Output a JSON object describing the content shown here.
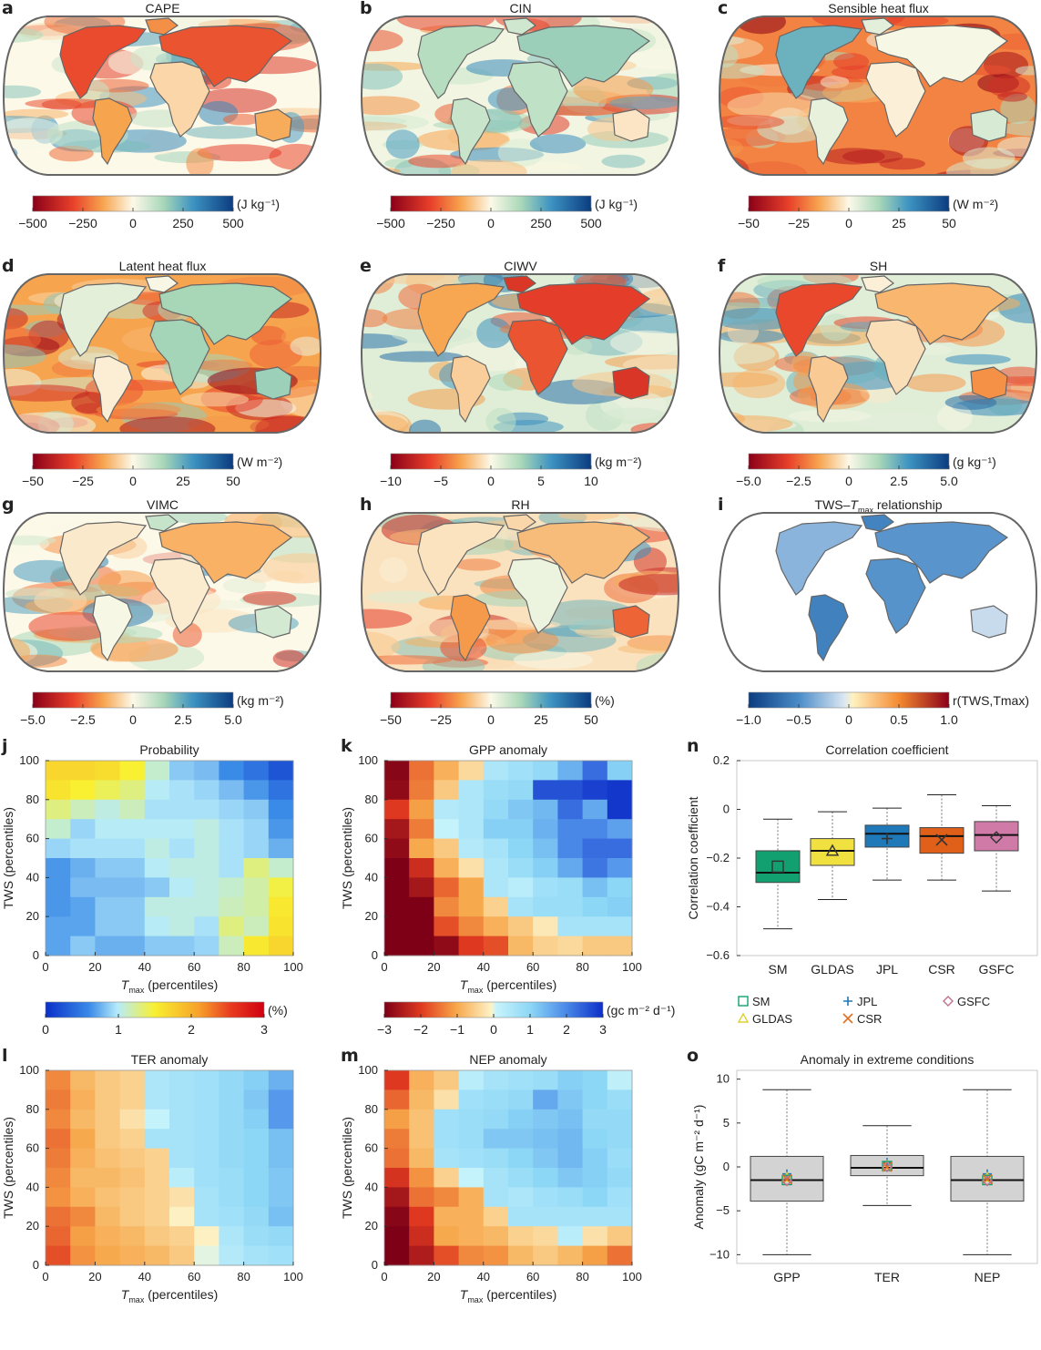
{
  "maps": [
    {
      "id": "a",
      "label": "a",
      "title": "CAPE",
      "unit": "(J kg⁻¹)",
      "ticks": [
        "−500",
        "−250",
        "0",
        "250",
        "500"
      ],
      "range": [
        -500,
        500
      ],
      "cmap": "rdylbu"
    },
    {
      "id": "b",
      "label": "b",
      "title": "CIN",
      "unit": "(J kg⁻¹)",
      "ticks": [
        "−500",
        "−250",
        "0",
        "250",
        "500"
      ],
      "range": [
        -500,
        500
      ],
      "cmap": "rdylbu"
    },
    {
      "id": "c",
      "label": "c",
      "title": "Sensible heat flux",
      "unit": "(W m⁻²)",
      "ticks": [
        "−50",
        "−25",
        "0",
        "25",
        "50"
      ],
      "range": [
        -50,
        50
      ],
      "cmap": "rdylbu"
    },
    {
      "id": "d",
      "label": "d",
      "title": "Latent heat flux",
      "unit": "(W m⁻²)",
      "ticks": [
        "−50",
        "−25",
        "0",
        "25",
        "50"
      ],
      "range": [
        -50,
        50
      ],
      "cmap": "rdylbu"
    },
    {
      "id": "e",
      "label": "e",
      "title": "CIWV",
      "unit": "(kg m⁻²)",
      "ticks": [
        "−10",
        "−5",
        "0",
        "5",
        "10"
      ],
      "range": [
        -10,
        10
      ],
      "cmap": "rdylbu"
    },
    {
      "id": "f",
      "label": "f",
      "title": "SH",
      "unit": "(g kg⁻¹)",
      "ticks": [
        "−5.0",
        "−2.5",
        "0",
        "2.5",
        "5.0"
      ],
      "range": [
        -5,
        5
      ],
      "cmap": "rdylbu"
    },
    {
      "id": "g",
      "label": "g",
      "title": "VIMC",
      "unit": "(kg m⁻²)",
      "ticks": [
        "−5.0",
        "−2.5",
        "0",
        "2.5",
        "5.0"
      ],
      "range": [
        -5,
        5
      ],
      "cmap": "rdylbu"
    },
    {
      "id": "h",
      "label": "h",
      "title": "RH",
      "unit": "(%)",
      "ticks": [
        "−50",
        "−25",
        "0",
        "25",
        "50"
      ],
      "range": [
        -50,
        50
      ],
      "cmap": "rdylbu"
    },
    {
      "id": "i",
      "label": "i",
      "title": "TWS–Tmax relationship",
      "title_main": "TWS–",
      "title_T": "T",
      "title_sub": "max",
      "title_rest": " relationship",
      "unit": "r(TWS,Tmax)",
      "ticks": [
        "−1.0",
        "−0.5",
        "0",
        "0.5",
        "1.0"
      ],
      "range": [
        -1,
        1
      ],
      "cmap": "burd"
    }
  ],
  "chart_data": [
    {
      "id": "j",
      "label": "j",
      "type": "heatmap",
      "title": "Probability",
      "xlabel": "Tmax (percentiles)",
      "ylabel": "TWS (percentiles)",
      "xticks": [
        "0",
        "20",
        "40",
        "60",
        "80",
        "100"
      ],
      "yticks": [
        "0",
        "20",
        "40",
        "60",
        "80",
        "100"
      ],
      "xlim": [
        0,
        100
      ],
      "ylim": [
        0,
        100
      ],
      "colorbar": {
        "unit": "(%)",
        "ticks": [
          "0",
          "1",
          "2",
          "3"
        ],
        "range": [
          0,
          3
        ],
        "cmap": "jet"
      },
      "rows_top_to_bottom": [
        [
          1.7,
          1.7,
          1.65,
          1.5,
          1.1,
          0.85,
          0.8,
          0.6,
          0.45,
          0.25
        ],
        [
          1.6,
          1.5,
          1.4,
          1.3,
          1.0,
          0.95,
          0.9,
          0.8,
          0.65,
          0.45
        ],
        [
          1.3,
          1.15,
          1.05,
          1.15,
          0.95,
          0.95,
          0.95,
          0.9,
          0.85,
          0.6
        ],
        [
          1.1,
          0.9,
          1.0,
          1.0,
          1.0,
          1.0,
          1.05,
          0.95,
          0.9,
          0.65
        ],
        [
          0.9,
          0.95,
          0.95,
          0.95,
          1.05,
          0.95,
          1.05,
          0.95,
          0.9,
          0.75
        ],
        [
          0.65,
          0.75,
          0.85,
          0.85,
          1.0,
          1.05,
          1.05,
          0.95,
          1.3,
          1.1
        ],
        [
          0.65,
          0.8,
          0.8,
          0.8,
          0.85,
          1.0,
          1.05,
          1.1,
          1.2,
          1.45
        ],
        [
          0.65,
          0.7,
          0.85,
          0.85,
          1.05,
          1.05,
          1.05,
          1.15,
          1.2,
          1.55
        ],
        [
          0.7,
          0.7,
          0.85,
          0.85,
          1.0,
          1.05,
          0.95,
          1.3,
          1.15,
          1.6
        ],
        [
          0.7,
          0.85,
          0.75,
          0.75,
          0.85,
          0.85,
          0.9,
          1.15,
          1.55,
          1.7
        ]
      ]
    },
    {
      "id": "k",
      "label": "k",
      "type": "heatmap",
      "title": "GPP anomaly",
      "xlabel": "Tmax (percentiles)",
      "ylabel": "TWS (percentiles)",
      "xticks": [
        "0",
        "20",
        "40",
        "60",
        "80",
        "100"
      ],
      "yticks": [
        "0",
        "20",
        "40",
        "60",
        "80",
        "100"
      ],
      "xlim": [
        0,
        100
      ],
      "ylim": [
        0,
        100
      ],
      "colorbar": {
        "unit": "(gc m⁻² d⁻¹)",
        "ticks": [
          "−3",
          "−2",
          "−1",
          "0",
          "1",
          "2",
          "3"
        ],
        "range": [
          -3,
          3
        ],
        "cmap": "rdbu_k"
      },
      "rows_top_to_bottom": [
        [
          -2.9,
          -1.5,
          -0.9,
          -0.4,
          0.5,
          0.7,
          0.9,
          1.5,
          2.3,
          1.1
        ],
        [
          -2.8,
          -1.4,
          -0.6,
          0.5,
          0.8,
          0.9,
          2.6,
          2.6,
          2.8,
          2.9
        ],
        [
          -2.0,
          -1.1,
          0.4,
          0.5,
          0.9,
          1.2,
          1.4,
          2.3,
          1.6,
          2.9
        ],
        [
          -2.6,
          -1.4,
          0.1,
          0.5,
          1.1,
          1.1,
          1.5,
          2.0,
          2.0,
          1.7
        ],
        [
          -2.8,
          -1.0,
          -0.6,
          0.4,
          0.6,
          1.0,
          1.3,
          2.0,
          2.3,
          2.3
        ],
        [
          -3.0,
          -2.2,
          -0.9,
          -0.3,
          0.5,
          0.8,
          1.1,
          1.6,
          2.2,
          1.8
        ],
        [
          -3.0,
          -2.6,
          -1.6,
          -1.0,
          0.5,
          0.3,
          0.7,
          0.8,
          1.3,
          1.0
        ],
        [
          -3.0,
          -3.0,
          -1.3,
          -1.0,
          -0.5,
          0.6,
          0.8,
          0.8,
          1.0,
          1.1
        ],
        [
          -3.0,
          -3.0,
          -1.8,
          -1.3,
          -0.9,
          -0.6,
          -0.2,
          0.6,
          0.6,
          0.6
        ],
        [
          -3.0,
          -3.0,
          -2.8,
          -2.0,
          -1.8,
          -0.8,
          -0.5,
          -0.4,
          -0.6,
          -0.6
        ]
      ]
    },
    {
      "id": "l",
      "label": "l",
      "type": "heatmap",
      "title": "TER anomaly",
      "xlabel": "Tmax (percentiles)",
      "ylabel": "TWS (percentiles)",
      "xticks": [
        "0",
        "20",
        "40",
        "60",
        "80",
        "100"
      ],
      "yticks": [
        "0",
        "20",
        "40",
        "60",
        "80",
        "100"
      ],
      "xlim": [
        0,
        100
      ],
      "ylim": [
        0,
        100
      ],
      "colorbar_ref": "k",
      "rows_top_to_bottom": [
        [
          -1.3,
          -0.8,
          -0.6,
          -0.5,
          0.5,
          0.6,
          0.7,
          0.9,
          1.1,
          1.5
        ],
        [
          -1.4,
          -0.9,
          -0.6,
          -0.5,
          0.5,
          0.6,
          0.7,
          0.9,
          1.2,
          1.8
        ],
        [
          -1.3,
          -0.8,
          -0.6,
          -0.3,
          0.1,
          0.6,
          0.7,
          0.9,
          1.1,
          1.8
        ],
        [
          -1.5,
          -1.0,
          -0.6,
          -0.5,
          0.6,
          0.6,
          0.7,
          0.9,
          1.0,
          1.3
        ],
        [
          -1.4,
          -0.9,
          -0.7,
          -0.6,
          -0.5,
          0.6,
          0.7,
          0.9,
          1.0,
          1.3
        ],
        [
          -1.3,
          -0.8,
          -0.8,
          -0.7,
          -0.5,
          0.3,
          0.7,
          0.8,
          1.0,
          1.2
        ],
        [
          -1.2,
          -0.9,
          -0.7,
          -0.6,
          -0.5,
          -0.3,
          0.6,
          0.8,
          1.0,
          1.2
        ],
        [
          -1.5,
          -1.3,
          -0.8,
          -0.6,
          -0.5,
          -0.1,
          0.6,
          0.7,
          0.9,
          1.3
        ],
        [
          -1.6,
          -1.1,
          -0.9,
          -0.8,
          -0.6,
          -0.5,
          -0.1,
          0.5,
          0.8,
          0.9
        ],
        [
          -1.8,
          -1.2,
          -1.0,
          -0.9,
          -0.8,
          -0.6,
          0.0,
          0.4,
          0.6,
          0.7
        ]
      ]
    },
    {
      "id": "m",
      "label": "m",
      "type": "heatmap",
      "title": "NEP anomaly",
      "xlabel": "Tmax (percentiles)",
      "ylabel": "TWS (percentiles)",
      "xticks": [
        "0",
        "20",
        "40",
        "60",
        "80",
        "100"
      ],
      "yticks": [
        "0",
        "20",
        "40",
        "60",
        "80",
        "100"
      ],
      "xlim": [
        0,
        100
      ],
      "ylim": [
        0,
        100
      ],
      "colorbar_ref": "k",
      "rows_top_to_bottom": [
        [
          -2.0,
          -0.9,
          -0.6,
          0.3,
          0.6,
          0.7,
          0.8,
          1.1,
          1.0,
          0.2
        ],
        [
          -1.6,
          -0.8,
          -0.3,
          0.7,
          0.8,
          0.9,
          1.6,
          1.2,
          1.0,
          0.8
        ],
        [
          -1.1,
          -0.7,
          0.7,
          0.8,
          0.9,
          1.1,
          1.2,
          1.3,
          0.9,
          0.9
        ],
        [
          -1.4,
          -0.7,
          0.7,
          0.8,
          1.2,
          1.2,
          1.3,
          1.4,
          1.0,
          0.9
        ],
        [
          -1.5,
          -0.8,
          0.6,
          0.7,
          0.8,
          1.0,
          1.2,
          1.4,
          1.1,
          0.8
        ],
        [
          -2.1,
          -1.2,
          -0.5,
          0.1,
          0.6,
          0.8,
          1.0,
          1.2,
          1.1,
          0.9
        ],
        [
          -2.6,
          -1.5,
          -1.3,
          -0.9,
          0.6,
          0.5,
          0.7,
          0.8,
          1.0,
          0.7
        ],
        [
          -2.9,
          -2.0,
          -0.9,
          -0.9,
          -0.5,
          0.6,
          0.6,
          0.6,
          0.6,
          0.6
        ],
        [
          -3.0,
          -2.2,
          -1.0,
          -0.9,
          -0.8,
          -0.5,
          -0.4,
          0.3,
          -0.3,
          -0.6
        ],
        [
          -3.0,
          -2.5,
          -1.8,
          -1.3,
          -1.2,
          -0.8,
          -0.6,
          -0.8,
          -1.1,
          -1.5
        ]
      ]
    },
    {
      "id": "n",
      "label": "n",
      "type": "box",
      "title": "Correlation coefficient",
      "ylabel": "Correlation coefficient",
      "ylim": [
        -0.6,
        0.2
      ],
      "yticks": [
        "0.2",
        "0",
        "−0.2",
        "−0.4",
        "−0.6"
      ],
      "categories": [
        "SM",
        "GLDAS",
        "JPL",
        "CSR",
        "GSFC"
      ],
      "boxes": [
        {
          "name": "SM",
          "whisker_high": -0.04,
          "q3": -0.17,
          "median": -0.26,
          "q1": -0.3,
          "whisker_low": -0.49,
          "mean": -0.235,
          "color": "#12a070",
          "marker": "square"
        },
        {
          "name": "GLDAS",
          "whisker_high": -0.01,
          "q3": -0.12,
          "median": -0.17,
          "q1": -0.23,
          "whisker_low": -0.37,
          "mean": -0.17,
          "color": "#f0e040",
          "marker": "triangle"
        },
        {
          "name": "JPL",
          "whisker_high": 0.005,
          "q3": -0.065,
          "median": -0.1,
          "q1": -0.155,
          "whisker_low": -0.29,
          "mean": -0.12,
          "color": "#1f78b8",
          "marker": "plus"
        },
        {
          "name": "CSR",
          "whisker_high": 0.06,
          "q3": -0.075,
          "median": -0.11,
          "q1": -0.18,
          "whisker_low": -0.29,
          "mean": -0.125,
          "color": "#e0601a",
          "marker": "cross"
        },
        {
          "name": "GSFC",
          "whisker_high": 0.015,
          "q3": -0.05,
          "median": -0.105,
          "q1": -0.17,
          "whisker_low": -0.335,
          "mean": -0.115,
          "color": "#d07aa8",
          "marker": "diamond"
        }
      ],
      "legend": [
        {
          "label": "SM",
          "marker": "square",
          "color": "#12a070"
        },
        {
          "label": "JPL",
          "marker": "plus",
          "color": "#1f78b8"
        },
        {
          "label": "GSFC",
          "marker": "diamond",
          "color": "#c07090"
        },
        {
          "label": "GLDAS",
          "marker": "triangle",
          "color": "#e0d030"
        },
        {
          "label": "CSR",
          "marker": "cross",
          "color": "#e07020"
        }
      ]
    },
    {
      "id": "o",
      "label": "o",
      "type": "box",
      "title": "Anomaly in extreme conditions",
      "ylabel": "Anomaly (gC m⁻² d⁻¹)",
      "ylim": [
        -11,
        11
      ],
      "yticks": [
        "10",
        "5",
        "0",
        "−5",
        "−10"
      ],
      "categories": [
        "GPP",
        "TER",
        "NEP"
      ],
      "boxes": [
        {
          "name": "GPP",
          "whisker_high": 8.8,
          "q3": 1.2,
          "median": -1.5,
          "q1": -3.9,
          "whisker_low": -10,
          "means": [
            -0.8,
            -1.2,
            -1.5,
            -1.4,
            -1.6
          ],
          "color": "#d3d3d3"
        },
        {
          "name": "TER",
          "whisker_high": 4.7,
          "q3": 1.3,
          "median": -0.1,
          "q1": -1.0,
          "whisker_low": -4.4,
          "means": [
            0.5,
            0.2,
            0.1,
            0.0,
            0.0
          ],
          "color": "#d3d3d3"
        },
        {
          "name": "NEP",
          "whisker_high": 8.8,
          "q3": 1.2,
          "median": -1.5,
          "q1": -3.9,
          "whisker_low": -10,
          "means": [
            -0.8,
            -1.2,
            -1.5,
            -1.4,
            -1.6
          ],
          "color": "#d3d3d3"
        }
      ]
    }
  ]
}
